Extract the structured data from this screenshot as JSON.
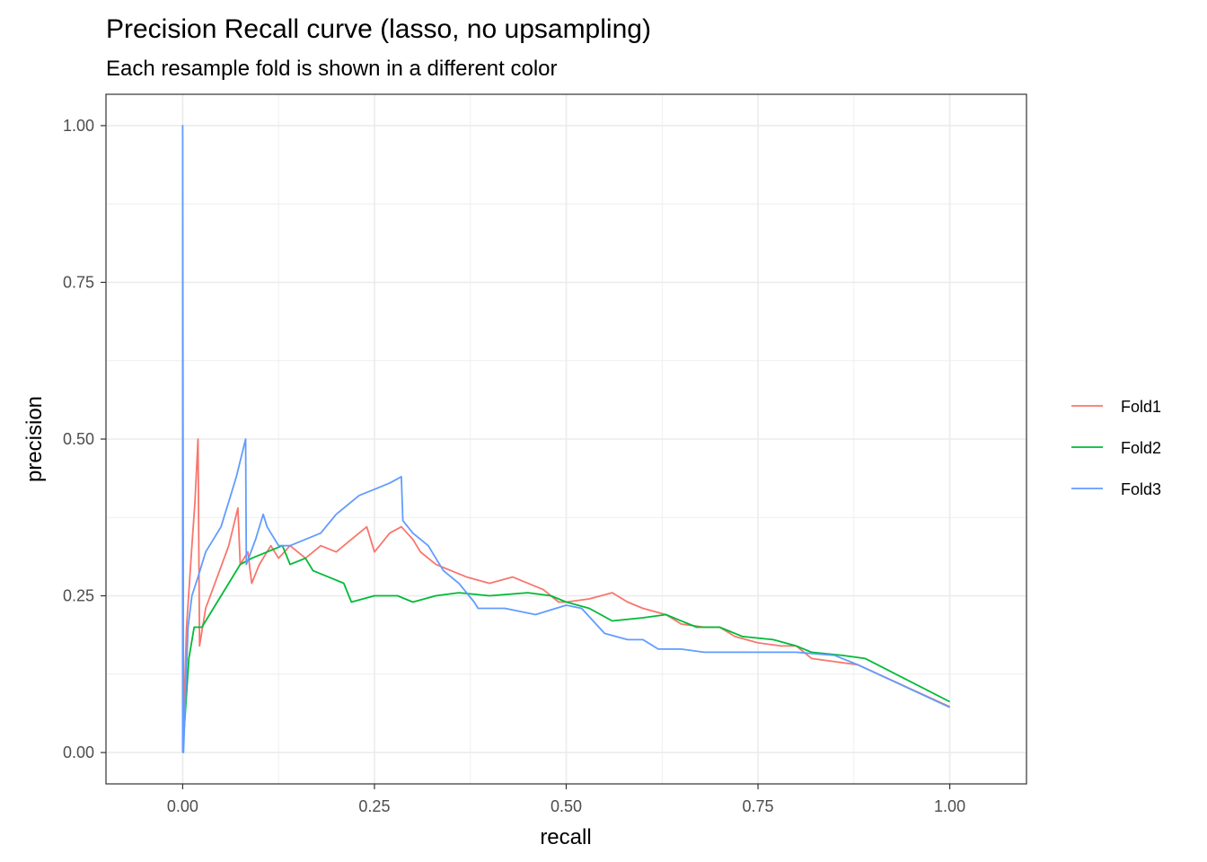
{
  "chart_data": {
    "type": "line",
    "title": "Precision Recall curve (lasso, no upsampling)",
    "subtitle": "Each resample fold is shown in a different color",
    "xlabel": "recall",
    "ylabel": "precision",
    "xlim": [
      -0.1,
      1.1
    ],
    "ylim": [
      -0.05,
      1.05
    ],
    "xticks": [
      0,
      0.25,
      0.5,
      0.75,
      1
    ],
    "xtick_labels": [
      "0.00",
      "0.25",
      "0.50",
      "0.75",
      "1.00"
    ],
    "yticks": [
      0,
      0.25,
      0.5,
      0.75,
      1
    ],
    "ytick_labels": [
      "0.00",
      "0.25",
      "0.50",
      "0.75",
      "1.00"
    ],
    "grid": true,
    "legend_position": "right",
    "series": [
      {
        "name": "Fold1",
        "color": "#F8766D",
        "points": [
          [
            0.0,
            0.0
          ],
          [
            0.005,
            0.2
          ],
          [
            0.012,
            0.33
          ],
          [
            0.016,
            0.4
          ],
          [
            0.02,
            0.5
          ],
          [
            0.022,
            0.17
          ],
          [
            0.03,
            0.23
          ],
          [
            0.045,
            0.28
          ],
          [
            0.06,
            0.33
          ],
          [
            0.072,
            0.39
          ],
          [
            0.075,
            0.3
          ],
          [
            0.085,
            0.32
          ],
          [
            0.09,
            0.27
          ],
          [
            0.1,
            0.3
          ],
          [
            0.115,
            0.33
          ],
          [
            0.125,
            0.31
          ],
          [
            0.14,
            0.33
          ],
          [
            0.16,
            0.31
          ],
          [
            0.18,
            0.33
          ],
          [
            0.2,
            0.32
          ],
          [
            0.22,
            0.34
          ],
          [
            0.24,
            0.36
          ],
          [
            0.25,
            0.32
          ],
          [
            0.27,
            0.35
          ],
          [
            0.285,
            0.36
          ],
          [
            0.3,
            0.34
          ],
          [
            0.31,
            0.32
          ],
          [
            0.33,
            0.3
          ],
          [
            0.35,
            0.29
          ],
          [
            0.37,
            0.28
          ],
          [
            0.4,
            0.27
          ],
          [
            0.43,
            0.28
          ],
          [
            0.45,
            0.27
          ],
          [
            0.47,
            0.26
          ],
          [
            0.49,
            0.24
          ],
          [
            0.5,
            0.24
          ],
          [
            0.53,
            0.245
          ],
          [
            0.56,
            0.255
          ],
          [
            0.58,
            0.24
          ],
          [
            0.6,
            0.23
          ],
          [
            0.63,
            0.22
          ],
          [
            0.65,
            0.205
          ],
          [
            0.68,
            0.2
          ],
          [
            0.7,
            0.2
          ],
          [
            0.72,
            0.185
          ],
          [
            0.75,
            0.175
          ],
          [
            0.78,
            0.17
          ],
          [
            0.8,
            0.17
          ],
          [
            0.82,
            0.15
          ],
          [
            0.85,
            0.145
          ],
          [
            0.88,
            0.14
          ],
          [
            1.0,
            0.073
          ]
        ]
      },
      {
        "name": "Fold2",
        "color": "#00BA38",
        "points": [
          [
            0.0,
            0.0
          ],
          [
            0.008,
            0.15
          ],
          [
            0.015,
            0.2
          ],
          [
            0.025,
            0.2
          ],
          [
            0.04,
            0.23
          ],
          [
            0.06,
            0.27
          ],
          [
            0.075,
            0.3
          ],
          [
            0.09,
            0.31
          ],
          [
            0.11,
            0.32
          ],
          [
            0.13,
            0.33
          ],
          [
            0.14,
            0.3
          ],
          [
            0.16,
            0.31
          ],
          [
            0.17,
            0.29
          ],
          [
            0.19,
            0.28
          ],
          [
            0.21,
            0.27
          ],
          [
            0.22,
            0.24
          ],
          [
            0.25,
            0.25
          ],
          [
            0.28,
            0.25
          ],
          [
            0.3,
            0.24
          ],
          [
            0.33,
            0.25
          ],
          [
            0.36,
            0.255
          ],
          [
            0.4,
            0.25
          ],
          [
            0.45,
            0.255
          ],
          [
            0.48,
            0.25
          ],
          [
            0.5,
            0.24
          ],
          [
            0.53,
            0.23
          ],
          [
            0.56,
            0.21
          ],
          [
            0.6,
            0.215
          ],
          [
            0.63,
            0.22
          ],
          [
            0.67,
            0.2
          ],
          [
            0.7,
            0.2
          ],
          [
            0.73,
            0.185
          ],
          [
            0.77,
            0.18
          ],
          [
            0.8,
            0.17
          ],
          [
            0.82,
            0.16
          ],
          [
            0.86,
            0.155
          ],
          [
            0.89,
            0.15
          ],
          [
            1.0,
            0.081
          ]
        ]
      },
      {
        "name": "Fold3",
        "color": "#619CFF",
        "points": [
          [
            0.0,
            0.0
          ],
          [
            0.0,
            1.0
          ],
          [
            0.001,
            0.0
          ],
          [
            0.007,
            0.2
          ],
          [
            0.012,
            0.25
          ],
          [
            0.02,
            0.28
          ],
          [
            0.03,
            0.32
          ],
          [
            0.04,
            0.34
          ],
          [
            0.05,
            0.36
          ],
          [
            0.06,
            0.4
          ],
          [
            0.07,
            0.44
          ],
          [
            0.082,
            0.5
          ],
          [
            0.083,
            0.3
          ],
          [
            0.095,
            0.34
          ],
          [
            0.105,
            0.38
          ],
          [
            0.11,
            0.36
          ],
          [
            0.125,
            0.33
          ],
          [
            0.14,
            0.33
          ],
          [
            0.16,
            0.34
          ],
          [
            0.18,
            0.35
          ],
          [
            0.2,
            0.38
          ],
          [
            0.23,
            0.41
          ],
          [
            0.25,
            0.42
          ],
          [
            0.27,
            0.43
          ],
          [
            0.285,
            0.44
          ],
          [
            0.287,
            0.37
          ],
          [
            0.3,
            0.35
          ],
          [
            0.32,
            0.33
          ],
          [
            0.34,
            0.29
          ],
          [
            0.36,
            0.27
          ],
          [
            0.38,
            0.24
          ],
          [
            0.385,
            0.23
          ],
          [
            0.42,
            0.23
          ],
          [
            0.46,
            0.22
          ],
          [
            0.5,
            0.235
          ],
          [
            0.52,
            0.23
          ],
          [
            0.55,
            0.19
          ],
          [
            0.58,
            0.18
          ],
          [
            0.6,
            0.18
          ],
          [
            0.62,
            0.165
          ],
          [
            0.65,
            0.165
          ],
          [
            0.68,
            0.16
          ],
          [
            0.7,
            0.16
          ],
          [
            0.75,
            0.16
          ],
          [
            0.8,
            0.16
          ],
          [
            0.85,
            0.155
          ],
          [
            0.88,
            0.14
          ],
          [
            1.0,
            0.072
          ]
        ]
      }
    ]
  }
}
